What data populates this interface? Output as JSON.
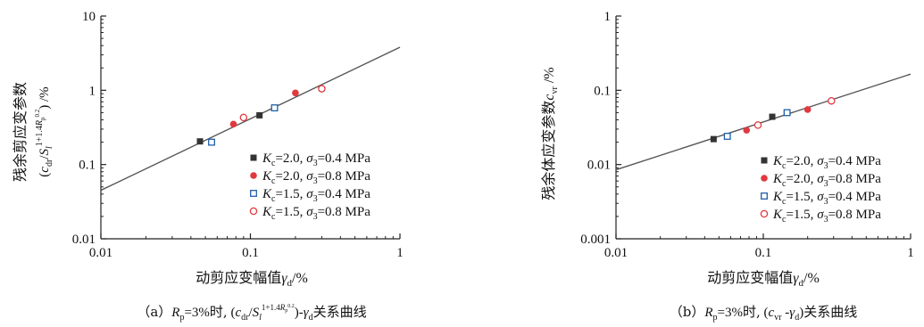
{
  "chart_data": [
    {
      "type": "scatter",
      "title": "（a）R_p=3%时, (c_dr/S_l^{1+1.4R_p^{0.2}})-γ_d关系曲线",
      "xlabel": "动剪应变幅值γ_d/%",
      "ylabel": "残余剪应变参数 (c_dr/S_l^{1+1.4R_p^{0.2}})/%",
      "xscale": "log",
      "yscale": "log",
      "xlim": [
        0.01,
        1
      ],
      "ylim": [
        0.01,
        10
      ],
      "xticks": [
        "0.01",
        "0.1",
        "1"
      ],
      "yticks": [
        "0.01",
        "0.1",
        "1",
        "10"
      ],
      "legend_position": "lower-right",
      "series": [
        {
          "name": "K_c=2.0, σ_3=0.4 MPa",
          "marker": "filled-square",
          "color": "#333333",
          "x": [
            0.046,
            0.115
          ],
          "y": [
            0.205,
            0.46
          ]
        },
        {
          "name": "K_c=2.0, σ_3=0.8 MPa",
          "marker": "filled-circle",
          "color": "#e0393e",
          "x": [
            0.077,
            0.2
          ],
          "y": [
            0.35,
            0.92
          ]
        },
        {
          "name": "K_c=1.5, σ_3=0.4 MPa",
          "marker": "open-square",
          "color": "#1f5fa8",
          "x": [
            0.055,
            0.145
          ],
          "y": [
            0.2,
            0.58
          ]
        },
        {
          "name": "K_c=1.5, σ_3=0.8 MPa",
          "marker": "open-circle",
          "color": "#e0393e",
          "x": [
            0.09,
            0.3
          ],
          "y": [
            0.43,
            1.05
          ]
        }
      ],
      "fit_line": {
        "x": [
          0.01,
          1
        ],
        "y": [
          0.045,
          3.8
        ]
      }
    },
    {
      "type": "scatter",
      "title": "（b）R_p=3%时, (c_vr-γ_d)关系曲线",
      "xlabel": "动剪应变幅值γ_d/%",
      "ylabel": "残余体应变参数c_vr/%",
      "xscale": "log",
      "yscale": "log",
      "xlim": [
        0.01,
        1
      ],
      "ylim": [
        0.001,
        1
      ],
      "xticks": [
        "0.01",
        "0.1",
        "1"
      ],
      "yticks": [
        "0.001",
        "0.01",
        "0.1",
        "1"
      ],
      "legend_position": "lower-right",
      "series": [
        {
          "name": "K_c=2.0, σ_3=0.4 MPa",
          "marker": "filled-square",
          "color": "#333333",
          "x": [
            0.046,
            0.115
          ],
          "y": [
            0.022,
            0.044
          ]
        },
        {
          "name": "K_c=2.0, σ_3=0.8 MPa",
          "marker": "filled-circle",
          "color": "#e0393e",
          "x": [
            0.077,
            0.2
          ],
          "y": [
            0.029,
            0.055
          ]
        },
        {
          "name": "K_c=1.5, σ_3=0.4 MPa",
          "marker": "open-square",
          "color": "#1f5fa8",
          "x": [
            0.057,
            0.145
          ],
          "y": [
            0.024,
            0.05
          ]
        },
        {
          "name": "K_c=1.5, σ_3=0.8 MPa",
          "marker": "open-circle",
          "color": "#e0393e",
          "x": [
            0.092,
            0.29
          ],
          "y": [
            0.034,
            0.072
          ]
        }
      ],
      "fit_line": {
        "x": [
          0.01,
          1
        ],
        "y": [
          0.0085,
          0.165
        ]
      }
    }
  ]
}
